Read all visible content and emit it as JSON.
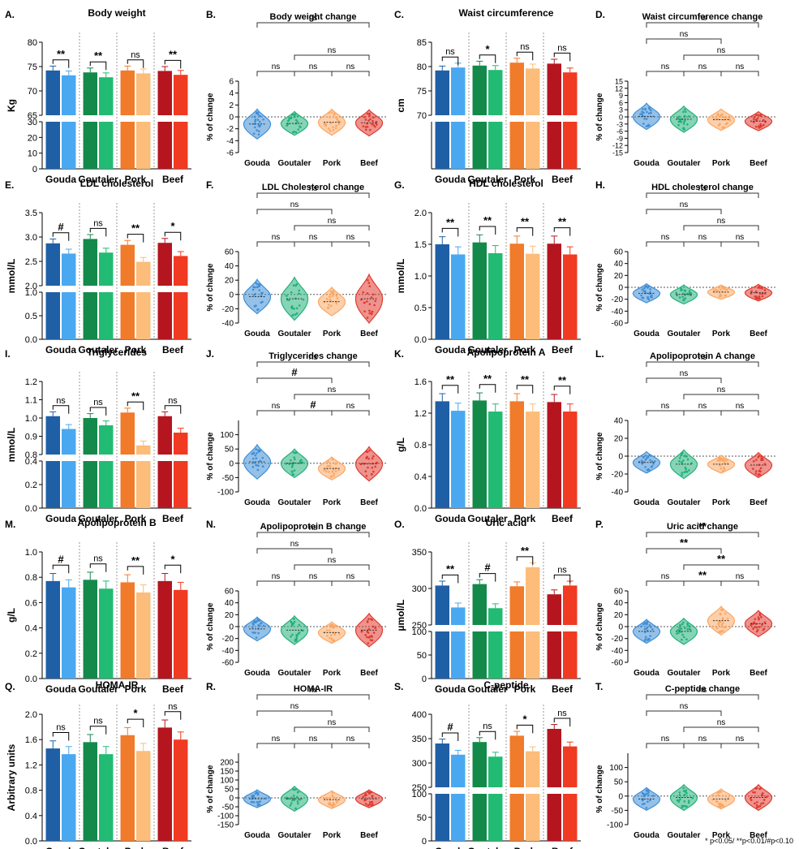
{
  "footnote": "* p<0.05/ **p<0.01/#p<0.10",
  "categories": [
    "Gouda",
    "Goutaler",
    "Pork",
    "Beef"
  ],
  "colors": {
    "Gouda": [
      "#1f5fa6",
      "#4aa8f0"
    ],
    "Goutaler": [
      "#138a4a",
      "#22bb73"
    ],
    "Pork": [
      "#f07b2a",
      "#fbbd79"
    ],
    "Beef": [
      "#b5151f",
      "#f03a22"
    ]
  },
  "violinColors": {
    "Gouda": "#3e8ed6",
    "Goutaler": "#22b07a",
    "Pork": "#fba764",
    "Beef": "#e03a2f"
  },
  "chart_data": [
    {
      "letter": "A.",
      "type": "bar",
      "title": "Body weight",
      "ylabel": "Kg",
      "hiLim": [
        65,
        80
      ],
      "hiTicks": [
        65,
        70,
        75,
        80
      ],
      "loLim": [
        0,
        30
      ],
      "loTicks": [
        0,
        10,
        20,
        30
      ],
      "pre": [
        74.2,
        73.8,
        74.2,
        74.1
      ],
      "post": [
        73.2,
        72.8,
        73.6,
        73.3
      ],
      "sig": [
        "**",
        "**",
        "ns",
        "**"
      ]
    },
    {
      "letter": "B.",
      "type": "violin",
      "title": "Body weight change",
      "ylabel": "% of change",
      "ylim": [
        -6,
        6
      ],
      "yticks": [
        -6,
        -4,
        -2,
        0,
        2,
        4,
        6
      ],
      "medians": [
        -1.2,
        -1.1,
        -0.9,
        -1.0
      ],
      "spread": [
        2.5,
        2.0,
        2.2,
        2.2
      ],
      "brackets": [
        {
          "a": 0,
          "b": 3,
          "label": "ns"
        },
        {
          "a": 1,
          "b": 3,
          "label": "ns"
        },
        {
          "a": 0,
          "b": 1,
          "label": "ns"
        },
        {
          "a": 1,
          "b": 2,
          "label": "ns"
        },
        {
          "a": 2,
          "b": 3,
          "label": "ns"
        }
      ]
    },
    {
      "letter": "C.",
      "type": "bar",
      "title": "Waist circumference",
      "ylabel": "cm",
      "hiLim": [
        70,
        85
      ],
      "hiTicks": [
        70,
        75,
        80,
        85
      ],
      "loLim": [
        0,
        30
      ],
      "loTicks": [],
      "pre": [
        79.2,
        80.2,
        80.8,
        80.6
      ],
      "post": [
        79.8,
        79.3,
        79.6,
        78.8
      ],
      "sig": [
        "ns",
        "*",
        "ns",
        "ns"
      ]
    },
    {
      "letter": "D.",
      "type": "violin",
      "title": "Waist circumference change",
      "ylabel": "% of change",
      "ylim": [
        -15,
        15
      ],
      "yticks": [
        -15,
        -12,
        -9,
        -6,
        -3,
        0,
        3,
        6,
        9,
        12,
        15
      ],
      "medians": [
        0.2,
        -1.0,
        -1.2,
        -1.8
      ],
      "spread": [
        5.5,
        5.5,
        4.5,
        4.0
      ],
      "brackets": [
        {
          "a": 0,
          "b": 3,
          "label": "ns"
        },
        {
          "a": 1,
          "b": 3,
          "label": "ns"
        },
        {
          "a": 0,
          "b": 2,
          "label": "ns"
        },
        {
          "a": 0,
          "b": 1,
          "label": "ns"
        },
        {
          "a": 1,
          "b": 2,
          "label": "ns"
        },
        {
          "a": 2,
          "b": 3,
          "label": "ns"
        }
      ]
    },
    {
      "letter": "E.",
      "type": "bar",
      "title": "LDL cholesterol",
      "ylabel": "mmol/L",
      "hiLim": [
        2.0,
        3.5
      ],
      "hiTicks": [
        2.0,
        2.5,
        3.0,
        3.5
      ],
      "loLim": [
        0,
        1.0
      ],
      "loTicks": [
        0.0,
        0.5,
        1.0
      ],
      "pre": [
        2.87,
        2.96,
        2.84,
        2.88
      ],
      "post": [
        2.66,
        2.68,
        2.49,
        2.61
      ],
      "sig": [
        "#",
        "ns",
        "**",
        "*"
      ]
    },
    {
      "letter": "F.",
      "type": "violin",
      "title": "LDL Cholesterol change",
      "ylabel": "% of change",
      "ylim": [
        -40,
        60
      ],
      "yticks": [
        -40,
        -20,
        0,
        20,
        40,
        60
      ],
      "medians": [
        -3,
        -6,
        -10,
        -6
      ],
      "spread": [
        24,
        30,
        20,
        34
      ],
      "brackets": [
        {
          "a": 0,
          "b": 3,
          "label": "ns"
        },
        {
          "a": 1,
          "b": 3,
          "label": "ns"
        },
        {
          "a": 0,
          "b": 2,
          "label": "ns"
        },
        {
          "a": 0,
          "b": 1,
          "label": "ns"
        },
        {
          "a": 1,
          "b": 2,
          "label": "ns"
        },
        {
          "a": 2,
          "b": 3,
          "label": "ns"
        }
      ]
    },
    {
      "letter": "G.",
      "type": "bar",
      "title": "HDL cholesterol",
      "ylabel": "mmol/L",
      "hiLim": [
        0,
        2.0
      ],
      "hiTicks": [
        0.0,
        0.5,
        1.0,
        1.5,
        2.0
      ],
      "loLim": null,
      "loTicks": [],
      "pre": [
        1.5,
        1.53,
        1.51,
        1.51
      ],
      "post": [
        1.34,
        1.36,
        1.35,
        1.34
      ],
      "sig": [
        "**",
        "**",
        "**",
        "**"
      ]
    },
    {
      "letter": "H.",
      "type": "violin",
      "title": "HDL cholesterol change",
      "ylabel": "% of change",
      "ylim": [
        -60,
        60
      ],
      "yticks": [
        -60,
        -40,
        -20,
        0,
        20,
        40,
        60
      ],
      "medians": [
        -10,
        -12,
        -8,
        -9
      ],
      "spread": [
        16,
        16,
        12,
        14
      ],
      "brackets": [
        {
          "a": 0,
          "b": 3,
          "label": "ns"
        },
        {
          "a": 1,
          "b": 3,
          "label": "ns"
        },
        {
          "a": 0,
          "b": 2,
          "label": "ns"
        },
        {
          "a": 0,
          "b": 1,
          "label": "ns"
        },
        {
          "a": 1,
          "b": 2,
          "label": "ns"
        },
        {
          "a": 2,
          "b": 3,
          "label": "ns"
        }
      ]
    },
    {
      "letter": "I.",
      "type": "bar",
      "title": "Triglycerides",
      "ylabel": "mmol/L",
      "hiLim": [
        0.8,
        1.2
      ],
      "hiTicks": [
        0.8,
        0.9,
        1.0,
        1.1,
        1.2
      ],
      "loLim": [
        0,
        0.4
      ],
      "loTicks": [
        0.0,
        0.2,
        0.4
      ],
      "pre": [
        1.01,
        1.0,
        1.03,
        1.01
      ],
      "post": [
        0.94,
        0.96,
        0.85,
        0.92
      ],
      "sig": [
        "ns",
        "ns",
        "**",
        "ns"
      ]
    },
    {
      "letter": "J.",
      "type": "violin",
      "title": "Triglycerides change",
      "ylabel": "% of change",
      "ylim": [
        -100,
        150
      ],
      "yticks": [
        -100,
        -50,
        0,
        50,
        100
      ],
      "medians": [
        5,
        0,
        -18,
        -2
      ],
      "spread": [
        60,
        50,
        40,
        60
      ],
      "brackets": [
        {
          "a": 0,
          "b": 3,
          "label": "ns"
        },
        {
          "a": 1,
          "b": 3,
          "label": "ns"
        },
        {
          "a": 0,
          "b": 2,
          "label": "#"
        },
        {
          "a": 0,
          "b": 1,
          "label": "ns"
        },
        {
          "a": 1,
          "b": 2,
          "label": "#"
        },
        {
          "a": 2,
          "b": 3,
          "label": "ns"
        }
      ]
    },
    {
      "letter": "K.",
      "type": "bar",
      "title": "Apolipoprotein A",
      "ylabel": "g/L",
      "hiLim": [
        0,
        1.6
      ],
      "hiTicks": [
        0.0,
        0.4,
        0.8,
        1.2,
        1.6
      ],
      "loLim": null,
      "loTicks": [],
      "pre": [
        1.35,
        1.36,
        1.35,
        1.34
      ],
      "post": [
        1.23,
        1.22,
        1.22,
        1.22
      ],
      "sig": [
        "**",
        "**",
        "**",
        "**"
      ]
    },
    {
      "letter": "L.",
      "type": "violin",
      "title": "Apolipoprotein A change",
      "ylabel": "% of change",
      "ylim": [
        -40,
        40
      ],
      "yticks": [
        -40,
        -20,
        0,
        20,
        40
      ],
      "medians": [
        -7,
        -9,
        -9,
        -10
      ],
      "spread": [
        12,
        16,
        10,
        14
      ],
      "brackets": [
        {
          "a": 0,
          "b": 3,
          "label": "ns"
        },
        {
          "a": 1,
          "b": 3,
          "label": "ns"
        },
        {
          "a": 0,
          "b": 2,
          "label": "ns"
        },
        {
          "a": 0,
          "b": 1,
          "label": "ns"
        },
        {
          "a": 1,
          "b": 2,
          "label": "ns"
        },
        {
          "a": 2,
          "b": 3,
          "label": "ns"
        }
      ]
    },
    {
      "letter": "M.",
      "type": "bar",
      "title": "Apolipoprotein B",
      "ylabel": "g/L",
      "hiLim": [
        0,
        1.0
      ],
      "hiTicks": [
        0.0,
        0.2,
        0.4,
        0.6,
        0.8,
        1.0
      ],
      "loLim": null,
      "loTicks": [],
      "pre": [
        0.77,
        0.78,
        0.76,
        0.77
      ],
      "post": [
        0.72,
        0.71,
        0.68,
        0.7
      ],
      "sig": [
        "#",
        "ns",
        "**",
        "*"
      ]
    },
    {
      "letter": "N.",
      "type": "violin",
      "title": "Apolipoprotein B change",
      "ylabel": "% of change",
      "ylim": [
        -60,
        60
      ],
      "yticks": [
        -60,
        -40,
        -20,
        0,
        20,
        40,
        60
      ],
      "medians": [
        -4,
        -6,
        -10,
        -6
      ],
      "spread": [
        20,
        24,
        18,
        28
      ],
      "brackets": [
        {
          "a": 0,
          "b": 3,
          "label": "ns"
        },
        {
          "a": 1,
          "b": 3,
          "label": "ns"
        },
        {
          "a": 0,
          "b": 2,
          "label": "ns"
        },
        {
          "a": 0,
          "b": 1,
          "label": "ns"
        },
        {
          "a": 1,
          "b": 2,
          "label": "ns"
        },
        {
          "a": 2,
          "b": 3,
          "label": "ns"
        }
      ]
    },
    {
      "letter": "O.",
      "type": "bar",
      "title": "Uric acid",
      "ylabel": "µmol/L",
      "hiLim": [
        250,
        350
      ],
      "hiTicks": [
        250,
        300,
        350
      ],
      "loLim": [
        0,
        100
      ],
      "loTicks": [
        0,
        50,
        100
      ],
      "pre": [
        304,
        306,
        303,
        292
      ],
      "post": [
        274,
        273,
        329,
        304
      ],
      "sig": [
        "**",
        "#",
        "**",
        "ns"
      ]
    },
    {
      "letter": "P.",
      "type": "violin",
      "title": "Uric acid change",
      "ylabel": "% of change",
      "ylim": [
        -60,
        60
      ],
      "yticks": [
        -60,
        -40,
        -20,
        0,
        20,
        40,
        60
      ],
      "medians": [
        -8,
        -8,
        10,
        5
      ],
      "spread": [
        20,
        22,
        24,
        22
      ],
      "brackets": [
        {
          "a": 0,
          "b": 3,
          "label": "**"
        },
        {
          "a": 1,
          "b": 3,
          "label": "**"
        },
        {
          "a": 0,
          "b": 2,
          "label": "**"
        },
        {
          "a": 0,
          "b": 1,
          "label": "ns"
        },
        {
          "a": 1,
          "b": 2,
          "label": "**"
        },
        {
          "a": 2,
          "b": 3,
          "label": "ns"
        }
      ]
    },
    {
      "letter": "Q.",
      "type": "bar",
      "title": "HOMA-IR",
      "ylabel": "Arbitrary units",
      "hiLim": [
        0,
        2.0
      ],
      "hiTicks": [
        0.0,
        0.4,
        0.8,
        1.2,
        1.6,
        2.0
      ],
      "loLim": null,
      "loTicks": [],
      "pre": [
        1.46,
        1.56,
        1.67,
        1.79
      ],
      "post": [
        1.37,
        1.37,
        1.42,
        1.6
      ],
      "sig": [
        "ns",
        "ns",
        "*",
        "ns"
      ]
    },
    {
      "letter": "R.",
      "type": "violin",
      "title": "HOMA-IR",
      "ylabel": "% of change",
      "ylim": [
        -150,
        250
      ],
      "yticks": [
        -150,
        -100,
        -50,
        0,
        50,
        100,
        150,
        200
      ],
      "medians": [
        -5,
        -5,
        -10,
        -5
      ],
      "spread": [
        50,
        70,
        50,
        50
      ],
      "brackets": [
        {
          "a": 0,
          "b": 3,
          "label": "ns"
        },
        {
          "a": 1,
          "b": 3,
          "label": "ns"
        },
        {
          "a": 0,
          "b": 2,
          "label": "ns"
        },
        {
          "a": 0,
          "b": 1,
          "label": "ns"
        },
        {
          "a": 1,
          "b": 2,
          "label": "ns"
        },
        {
          "a": 2,
          "b": 3,
          "label": "ns"
        }
      ]
    },
    {
      "letter": "S.",
      "type": "bar",
      "title": "C-peptide",
      "ylabel": "",
      "hiLim": [
        250,
        400
      ],
      "hiTicks": [
        250,
        300,
        350,
        400
      ],
      "loLim": [
        0,
        100
      ],
      "loTicks": [
        0,
        50,
        100
      ],
      "pre": [
        340,
        343,
        356,
        370
      ],
      "post": [
        317,
        313,
        324,
        334
      ],
      "sig": [
        "#",
        "ns",
        "*",
        "ns"
      ]
    },
    {
      "letter": "T.",
      "type": "violin",
      "title": "C-peptide change",
      "ylabel": "% of change",
      "ylim": [
        -100,
        150
      ],
      "yticks": [
        -100,
        -50,
        0,
        50,
        100
      ],
      "medians": [
        -10,
        -5,
        -10,
        -5
      ],
      "spread": [
        40,
        45,
        35,
        45
      ],
      "brackets": [
        {
          "a": 0,
          "b": 3,
          "label": "ns"
        },
        {
          "a": 1,
          "b": 3,
          "label": "ns"
        },
        {
          "a": 0,
          "b": 2,
          "label": "ns"
        },
        {
          "a": 0,
          "b": 1,
          "label": "ns"
        },
        {
          "a": 1,
          "b": 2,
          "label": "ns"
        },
        {
          "a": 2,
          "b": 3,
          "label": "ns"
        }
      ]
    }
  ]
}
